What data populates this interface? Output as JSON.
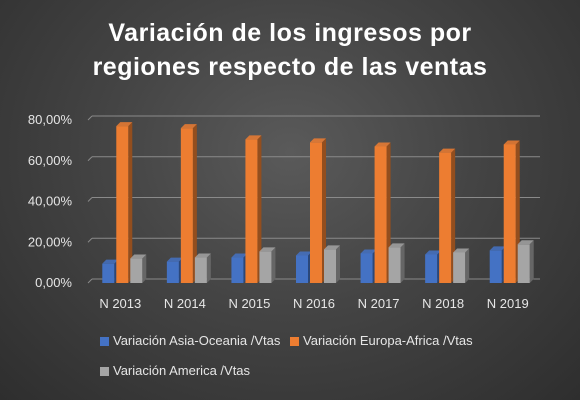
{
  "chart_data": {
    "type": "bar",
    "title_lines": [
      "Variación de los ingresos por",
      "regiones respecto de las ventas"
    ],
    "categories": [
      "N 2013",
      "N 2014",
      "N 2015",
      "N 2016",
      "N 2017",
      "N 2018",
      "N 2019"
    ],
    "series": [
      {
        "name": "Variación Asia-Oceania /Vtas",
        "color": "#4472c4",
        "values": [
          9.5,
          10.5,
          12.5,
          13.5,
          14.5,
          14,
          16
        ]
      },
      {
        "name": "Variación Europa-Africa /Vtas",
        "color": "#ed7d31",
        "values": [
          77,
          76,
          70.5,
          69,
          67,
          64,
          68
        ]
      },
      {
        "name": "Variación America /Vtas",
        "color": "#a5a5a5",
        "values": [
          12,
          12.5,
          15.5,
          16.5,
          17.5,
          15,
          19
        ]
      }
    ],
    "yticks": [
      "0,00%",
      "20,00%",
      "40,00%",
      "60,00%",
      "80,00%"
    ],
    "ylim": [
      0,
      80
    ],
    "grid": true,
    "legend_position": "bottom"
  }
}
